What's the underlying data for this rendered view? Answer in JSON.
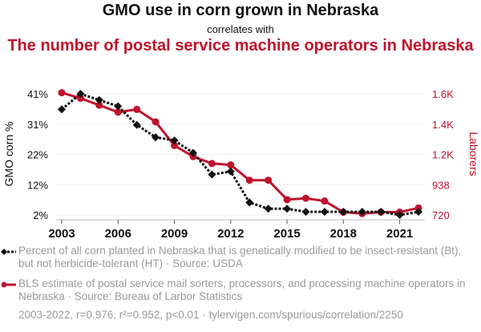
{
  "header": {
    "title": "GMO use in corn grown in Nebraska",
    "subtitle": "correlates with",
    "title2": "The number of postal service machine operators in Nebraska"
  },
  "legend": {
    "series1": "Percent of all corn planted in Nebraska that is genetically modified to be insect-resistant (Bt), but not herbicide-tolerant (HT) · Source: USDA",
    "series2": "BLS estimate of postal service mail sorters, processors, and processing machine operators in Nebraska · Source: Bureau of Larbor Statistics"
  },
  "footer": "2003-2022, r=0.976, r²=0.952, p<0.01 · tylervigen.com/spurious/correlation/2250",
  "colors": {
    "series1": "#111111",
    "series2": "#c0132c",
    "grid": "#eeeeee",
    "axis_text": "#111111"
  },
  "chart_data": {
    "type": "line",
    "title": "GMO use in corn grown in Nebraska correlates with The number of postal service machine operators in Nebraska",
    "x": [
      2003,
      2004,
      2005,
      2006,
      2007,
      2008,
      2009,
      2010,
      2011,
      2012,
      2013,
      2014,
      2015,
      2016,
      2017,
      2018,
      2019,
      2020,
      2021,
      2022
    ],
    "xticks": [
      "2003",
      "2006",
      "2009",
      "2012",
      "2015",
      "2018",
      "2021"
    ],
    "xtick_values": [
      2003,
      2006,
      2009,
      2012,
      2015,
      2018,
      2021
    ],
    "xlim": [
      2003,
      2022
    ],
    "grid": true,
    "y_left": {
      "label": "GMO corn %",
      "ticks": [
        "2%",
        "12%",
        "22%",
        "31%",
        "41%"
      ],
      "tick_values": [
        2,
        11.75,
        21.5,
        31.25,
        41
      ],
      "ylim": [
        2,
        41
      ]
    },
    "y_right": {
      "label": "Laborers",
      "ticks": [
        "720",
        "938",
        "1.2K",
        "1.4K",
        "1.6K"
      ],
      "tick_values": [
        720,
        938,
        1156,
        1374,
        1592
      ],
      "ylim": [
        720,
        1592
      ]
    },
    "series": [
      {
        "name": "Percent of all corn planted in Nebraska that is genetically modified to be insect-resistant (Bt), but not herbicide-tolerant (HT)",
        "axis": "left",
        "style": "dotted-diamond",
        "values": [
          36,
          41,
          39,
          37,
          31,
          27,
          26,
          22,
          15,
          16,
          6,
          4,
          4,
          3,
          3,
          3,
          3,
          3,
          2,
          3
        ]
      },
      {
        "name": "BLS estimate of postal service mail sorters, processors, and processing machine operators",
        "axis": "right",
        "style": "solid-circle",
        "values": [
          1600,
          1560,
          1510,
          1460,
          1480,
          1390,
          1220,
          1140,
          1090,
          1080,
          970,
          970,
          830,
          840,
          820,
          740,
          730,
          740,
          740,
          770
        ]
      }
    ],
    "legend_position": "bottom"
  }
}
